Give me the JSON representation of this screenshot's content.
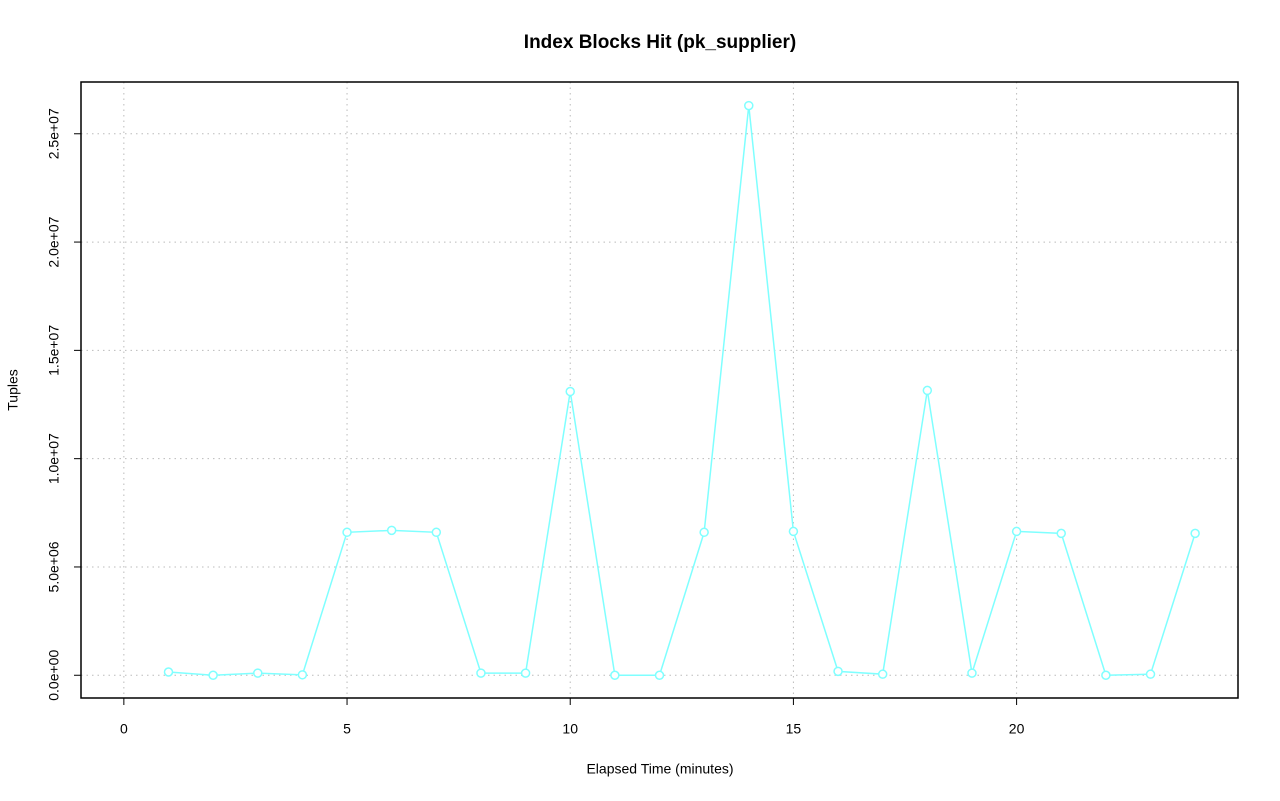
{
  "chart_data": {
    "type": "line",
    "title": "Index Blocks Hit (pk_supplier)",
    "x_label": "Elapsed Time (minutes)",
    "y_label": "Tuples",
    "x": [
      1,
      2,
      3,
      4,
      5,
      6,
      7,
      8,
      9,
      10,
      11,
      12,
      13,
      14,
      15,
      16,
      17,
      18,
      19,
      20,
      21,
      22,
      23,
      24
    ],
    "values": [
      150000,
      0,
      100000,
      20000,
      6600000,
      6690000,
      6600000,
      100000,
      100000,
      13100000,
      0,
      0,
      6600000,
      26300000,
      6640000,
      180000,
      50000,
      13150000,
      100000,
      6640000,
      6550000,
      0,
      50000,
      6550000
    ],
    "color": "#7fffff",
    "xlim": [
      -0.96,
      24.96
    ],
    "xticks": [
      0,
      5,
      10,
      15,
      20
    ],
    "ylim": [
      -1050000,
      27390000
    ],
    "yticks": [
      {
        "value": 0,
        "label": "0.0e+00"
      },
      {
        "value": 5000000,
        "label": "5.0e+06"
      },
      {
        "value": 10000000,
        "label": "1.0e+07"
      },
      {
        "value": 15000000,
        "label": "1.5e+07"
      },
      {
        "value": 20000000,
        "label": "2.0e+07"
      },
      {
        "value": 25000000,
        "label": "2.5e+07"
      }
    ],
    "grid": true
  }
}
